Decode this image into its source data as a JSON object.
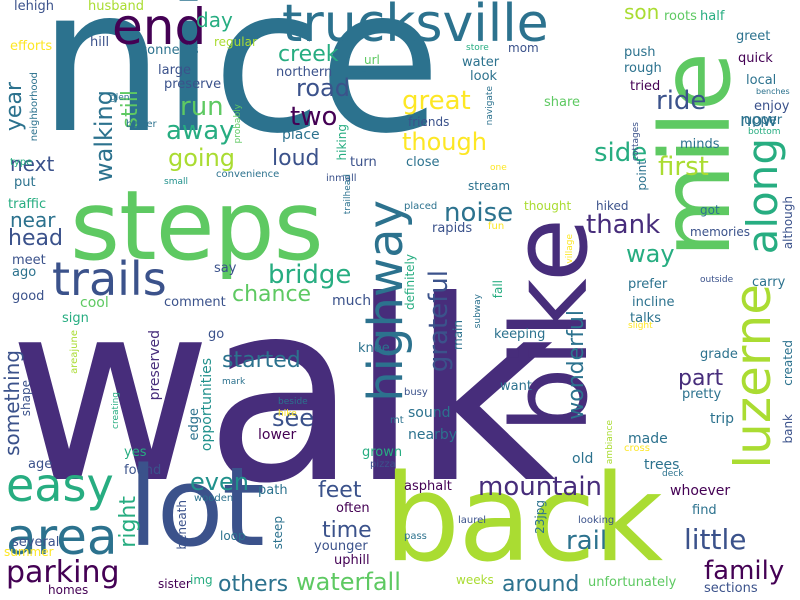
{
  "palette": {
    "deep_purple": "#440154",
    "indigo": "#472d7b",
    "blue": "#3b528b",
    "slate": "#2c728e",
    "teal": "#21918c",
    "green": "#27ad81",
    "light_green": "#5ec962",
    "lime": "#aadc32",
    "yellow": "#fde725"
  },
  "words": {
    "walk": "walk",
    "nice": "nice",
    "back": "back",
    "lot": "lot",
    "steps": "steps",
    "bike": "bike",
    "mile": "mile",
    "trucksville": "trucksville",
    "end": "end",
    "trails": "trails",
    "area": "area",
    "easy": "easy",
    "luzerne": "luzerne",
    "highway": "highway",
    "along": "along",
    "parking": "parking",
    "mountain": "mountain",
    "bridge": "bridge",
    "waterfall": "waterfall",
    "little": "little",
    "family": "family",
    "rail": "rail",
    "noise": "noise",
    "great": "great",
    "ride": "ride",
    "two": "two",
    "road": "road",
    "run": "run",
    "away": "away",
    "going": "going",
    "loud": "loud",
    "though": "though",
    "side": "side",
    "first": "first",
    "creek": "creek",
    "thank": "thank",
    "way": "way",
    "chance": "chance",
    "started": "started",
    "see": "see",
    "even": "even",
    "feet": "feet",
    "time": "time",
    "others": "others",
    "around": "around",
    "head": "head",
    "near": "near",
    "year": "year",
    "walking": "walking",
    "still": "still",
    "grateful": "grateful",
    "wonderful": "wonderful",
    "part": "part",
    "right": "right",
    "something": "something",
    "next": "next",
    "day": "day",
    "son": "son",
    "now": "now",
    "cool": "cool",
    "comment": "comment",
    "much": "much",
    "preserved": "preserved",
    "opportunities": "opportunities",
    "lower": "lower",
    "sound": "sound",
    "nearby": "nearby",
    "old": "old",
    "trip": "trip",
    "made": "made",
    "trees": "trees",
    "whoever": "whoever",
    "find": "find",
    "unfortunately": "unfortunately",
    "sections": "sections",
    "uphill": "uphill",
    "younger": "younger",
    "often": "often",
    "asphalt": "asphalt",
    "path": "path",
    "edge": "edge",
    "yes": "yes",
    "found": "found",
    "age": "age",
    "several": "several",
    "summer": "summer",
    "homes": "homes",
    "sister": "sister",
    "img": "img",
    "steep": "steep",
    "loop": "loop",
    "beneath": "beneath",
    "wooden": "wooden",
    "grown": "grown",
    "want": "want",
    "keeping": "keeping",
    "talks": "talks",
    "incline": "incline",
    "prefer": "prefer",
    "carry": "carry",
    "grade": "grade",
    "pretty": "pretty",
    "created": "created",
    "bank": "bank",
    "memories": "memories",
    "hiked": "hiked",
    "got": "got",
    "although": "although",
    "outside": "outside",
    "thought": "thought",
    "placed": "placed",
    "rapids": "rapids",
    "fun": "fun",
    "definitely": "definitely",
    "main": "main",
    "subway": "subway",
    "fall": "fall",
    "stream": "stream",
    "friends": "friends",
    "close": "close",
    "hiking": "hiking",
    "turn": "turn",
    "inmall": "inmall",
    "convenience": "convenience",
    "small": "small",
    "trailhead": "trailhead",
    "place": "place",
    "northern": "northern",
    "water": "water",
    "look": "look",
    "url": "url",
    "large": "large",
    "preserve": "preserve",
    "connects": "connects",
    "regular": "regular",
    "hill": "hill",
    "efforts": "efforts",
    "lehigh": "lehigh",
    "husband": "husband",
    "neighborhood": "neighborhood",
    "glen": "glen",
    "better": "better",
    "type": "type",
    "put": "put",
    "traffic": "traffic",
    "meet": "meet",
    "ago": "ago",
    "good": "good",
    "sign": "sign",
    "areajune": "areajune",
    "shape": "shape",
    "creating": "creating",
    "probably": "probably",
    "store": "store",
    "mom": "mom",
    "roots": "roots",
    "half": "half",
    "greet": "greet",
    "push": "push",
    "quick": "quick",
    "rough": "rough",
    "tried": "tried",
    "local": "local",
    "benches": "benches",
    "enjoy": "enjoy",
    "upper": "upper",
    "bottom": "bottom",
    "minds": "minds",
    "point": "point",
    "cottages": "cottages",
    "navigate": "navigate",
    "share": "share",
    "one": "one",
    "village": "village",
    "slight": "slight",
    "say": "say",
    "go": "go",
    "mark": "mark",
    "beside": "beside",
    "hike": "hike",
    "knee": "knee",
    "busy": "busy",
    "mt": "mt",
    "pizza": "pizza",
    "ambiance": "ambiance",
    "cross": "cross",
    "deck": "deck",
    "23jpg": "23jpg",
    "laurel": "laurel",
    "looking": "looking",
    "pass": "pass",
    "weeks": "weeks",
    "s": "s"
  }
}
